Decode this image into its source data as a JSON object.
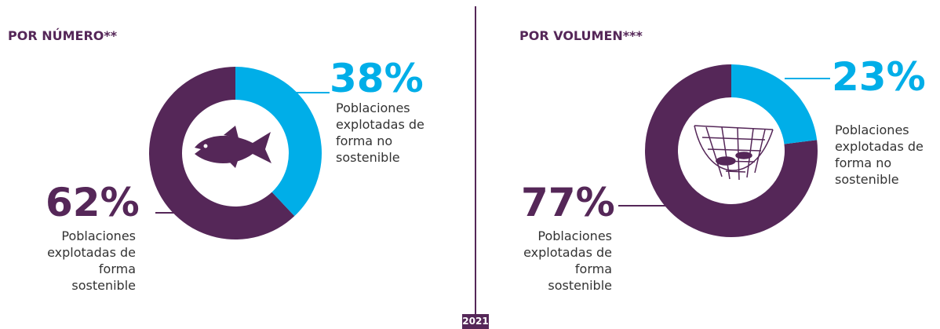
{
  "chart_data": [
    {
      "type": "pie",
      "title": "POR NÚMERO**",
      "categories": [
        "Poblaciones explotadas de forma no sostenible",
        "Poblaciones explotadas de forma sostenible"
      ],
      "values": [
        38,
        62
      ],
      "value_labels": [
        "38%",
        "62%"
      ],
      "colors": [
        "#00aee8",
        "#552758"
      ]
    },
    {
      "type": "pie",
      "title": "POR VOLUMEN***",
      "categories": [
        "Poblaciones explotadas de forma no sostenible",
        "Poblaciones explotadas de forma sostenible"
      ],
      "values": [
        23,
        77
      ],
      "value_labels": [
        "23%",
        "77%"
      ],
      "colors": [
        "#00aee8",
        "#552758"
      ]
    }
  ],
  "year": "2021"
}
